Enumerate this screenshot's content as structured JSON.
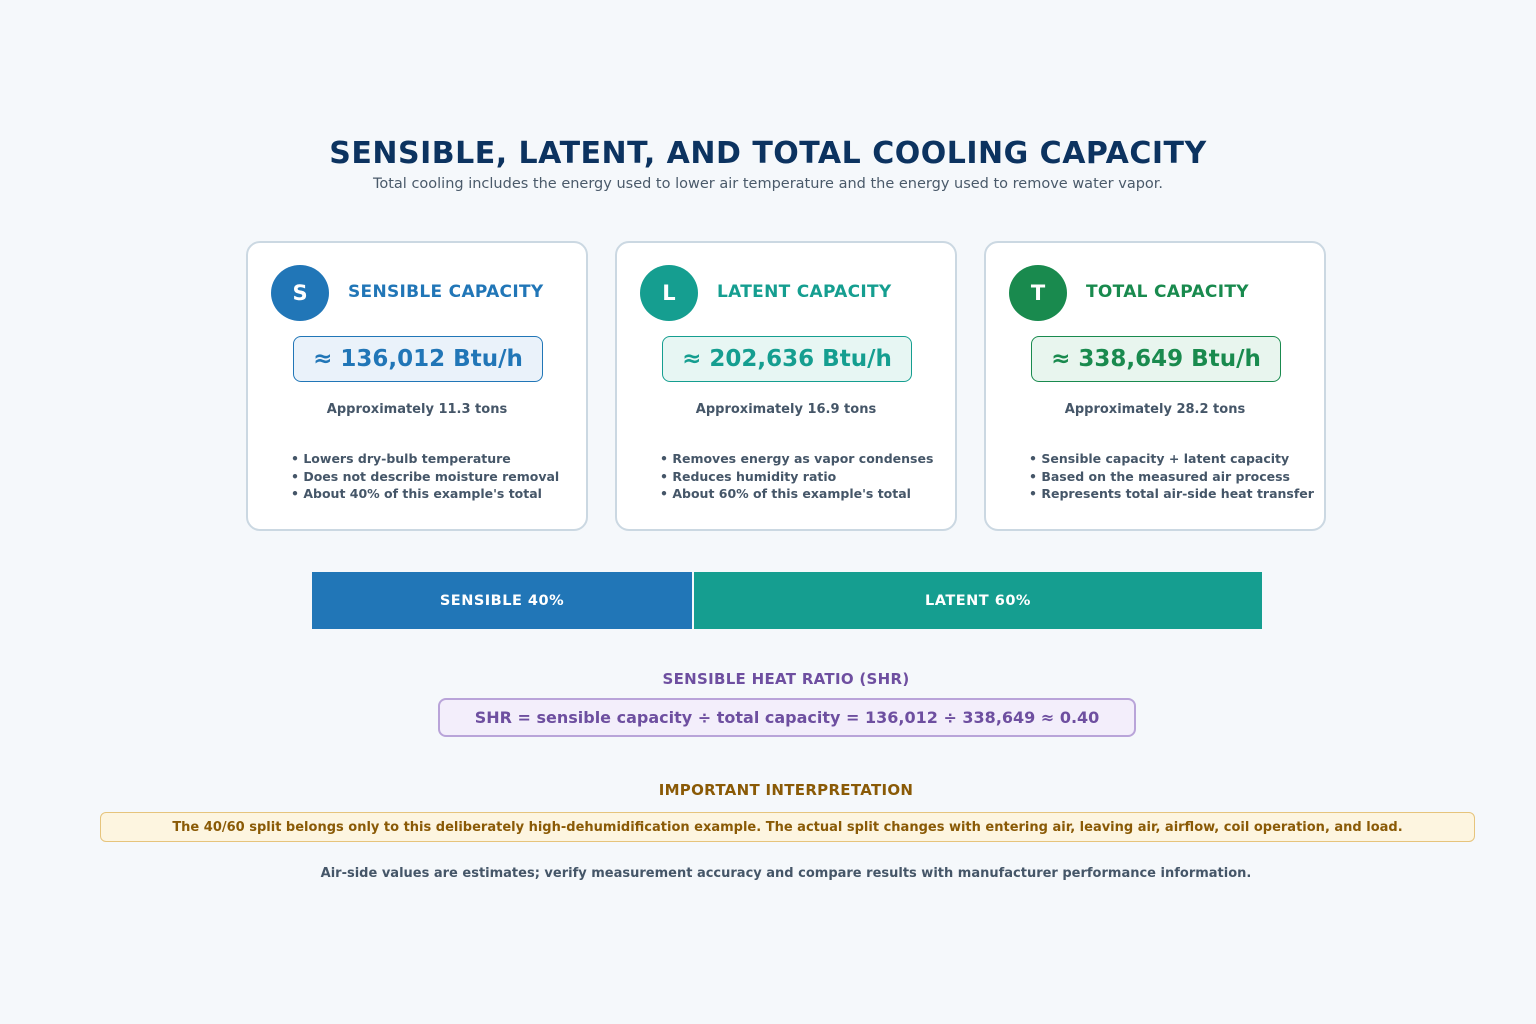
{
  "title": "SENSIBLE, LATENT, AND TOTAL COOLING CAPACITY",
  "subtitle": "Total cooling includes the energy used to lower air temperature and the energy used to remove water vapor.",
  "cards": [
    {
      "letter": "S",
      "title": "SENSIBLE CAPACITY",
      "value": "≈ 136,012 Btu/h",
      "tons": "Approximately 11.3 tons",
      "bullets": [
        "• Lowers dry-bulb temperature",
        "• Does not describe moisture removal",
        "• About 40% of this example's total"
      ],
      "color": "#2176b7",
      "tint": "#eaf2fa"
    },
    {
      "letter": "L",
      "title": "LATENT CAPACITY",
      "value": "≈ 202,636 Btu/h",
      "tons": "Approximately 16.9 tons",
      "bullets": [
        "• Removes energy as vapor condenses",
        "• Reduces humidity ratio",
        "• About 60% of this example's total"
      ],
      "color": "#159e90",
      "tint": "#e7f6f3"
    },
    {
      "letter": "T",
      "title": "TOTAL CAPACITY",
      "value": "≈ 338,649 Btu/h",
      "tons": "Approximately 28.2 tons",
      "bullets": [
        "• Sensible capacity + latent capacity",
        "• Based on the measured air process",
        "• Represents total air-side heat transfer"
      ],
      "color": "#198a4e",
      "tint": "#e8f5ee"
    }
  ],
  "split": {
    "sensible_label": "SENSIBLE  40%",
    "latent_label": "LATENT  60%",
    "sensible_fraction": 0.4,
    "latent_fraction": 0.6,
    "sensible_color": "#2176b7",
    "latent_color": "#159e90"
  },
  "shr": {
    "heading": "SENSIBLE HEAT RATIO (SHR)",
    "formula": "SHR = sensible capacity ÷ total capacity = 136,012 ÷ 338,649 ≈ 0.40"
  },
  "interpretation": {
    "heading": "IMPORTANT INTERPRETATION",
    "text": "The 40/60 split belongs only to this deliberately high-dehumidification example. The actual split changes with entering air, leaving air, airflow, coil operation, and load."
  },
  "footer": "Air-side values are estimates; verify measurement accuracy and compare results with manufacturer performance information."
}
